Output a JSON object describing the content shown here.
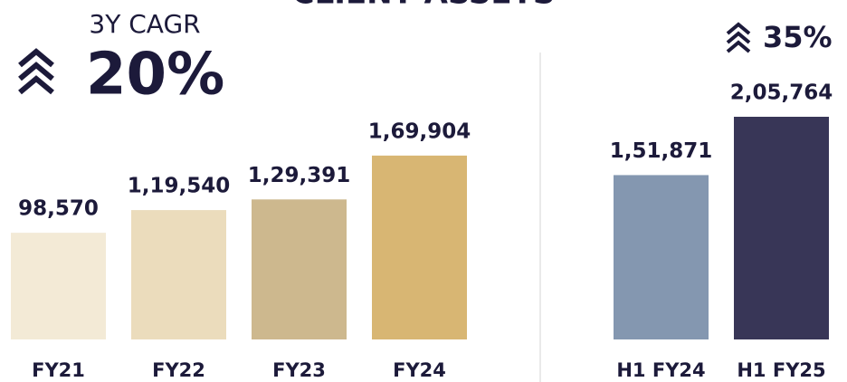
{
  "chart_data": [
    {
      "type": "bar",
      "title": "CLIENT ASSETS",
      "categories": [
        "FY21",
        "FY22",
        "FY23",
        "FY24"
      ],
      "values": [
        98570,
        119540,
        129391,
        169904
      ],
      "value_labels": [
        "98,570",
        "1,19,540",
        "1,29,391",
        "1,69,904"
      ],
      "colors": [
        "#f3ead6",
        "#ebdcbc",
        "#cdb88e",
        "#d8b673"
      ],
      "annotations": [
        "3Y CAGR",
        "20%"
      ]
    },
    {
      "type": "bar",
      "categories": [
        "H1 FY24",
        "H1 FY25"
      ],
      "values": [
        151871,
        205764
      ],
      "value_labels": [
        "1,51,871",
        "2,05,764"
      ],
      "colors": [
        "#8497b0",
        "#383657"
      ],
      "annotations": [
        "35%"
      ]
    }
  ]
}
